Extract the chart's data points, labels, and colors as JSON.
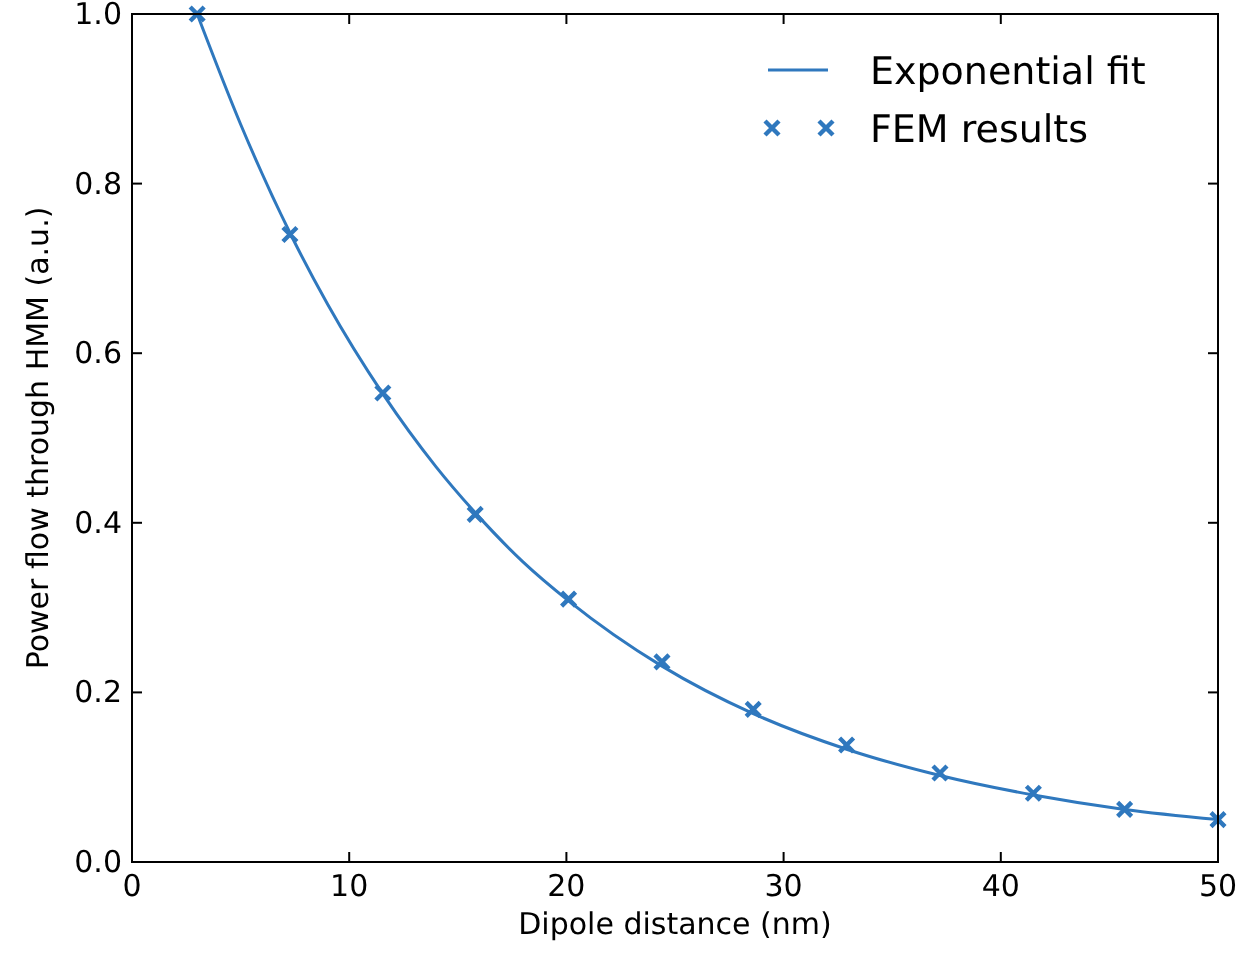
{
  "chart_data": {
    "type": "line",
    "xlabel": "Dipole distance (nm)",
    "ylabel": "Power flow through HMM (a.u.)",
    "xlim": [
      0,
      50
    ],
    "xticks": [
      0,
      10,
      20,
      30,
      40,
      50
    ],
    "ylim": [
      0,
      1.0
    ],
    "yticks": [
      {
        "value": 0,
        "label": "0.0"
      },
      {
        "value": 0.2,
        "label": "0.2"
      },
      {
        "value": 0.4,
        "label": "0.4"
      },
      {
        "value": 0.6,
        "label": "0.6"
      },
      {
        "value": 0.8,
        "label": "0.8"
      },
      {
        "value": 1.0,
        "label": "1.0"
      }
    ],
    "grid": false,
    "legend": "top right",
    "series": [
      {
        "name": "Exponential fit",
        "color": "#2f78be",
        "marker": "none",
        "line_style": "solid",
        "x": [
          3,
          5,
          7.27,
          9,
          11.55,
          14,
          15.8,
          18,
          20.1,
          24.4,
          28.6,
          32.9,
          37.2,
          41.5,
          45.7,
          50
        ],
        "values": [
          1.0,
          0.87,
          0.742,
          0.658,
          0.552,
          0.466,
          0.412,
          0.354,
          0.308,
          0.231,
          0.175,
          0.133,
          0.102,
          0.079,
          0.062,
          0.05
        ]
      },
      {
        "name": "FEM results",
        "type": "scatter",
        "color": "#2f78be",
        "marker": "cross",
        "x": [
          3,
          7.27,
          11.55,
          15.8,
          20.1,
          24.4,
          28.6,
          32.9,
          37.2,
          41.5,
          45.7,
          50
        ],
        "values": [
          1.0,
          0.74,
          0.553,
          0.41,
          0.31,
          0.236,
          0.18,
          0.138,
          0.105,
          0.081,
          0.062,
          0.05
        ]
      }
    ]
  }
}
